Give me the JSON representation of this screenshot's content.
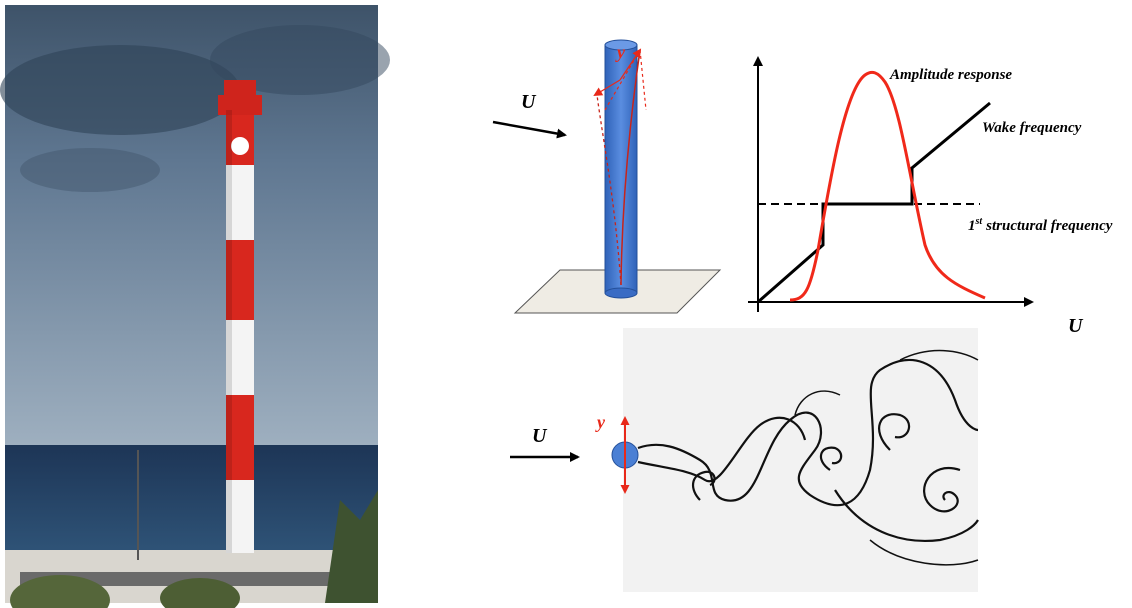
{
  "cylinder_sketch": {
    "flow_label": "U",
    "displacement_label": "y"
  },
  "response_plot": {
    "amplitude_label": "Amplitude response",
    "wake_label": "Wake frequency",
    "structural_label": {
      "number": "1",
      "superscript": "st",
      "text": "structural frequency"
    },
    "x_axis_label": "U"
  },
  "wake_sketch": {
    "flow_label": "U",
    "displacement_label": "y"
  }
}
